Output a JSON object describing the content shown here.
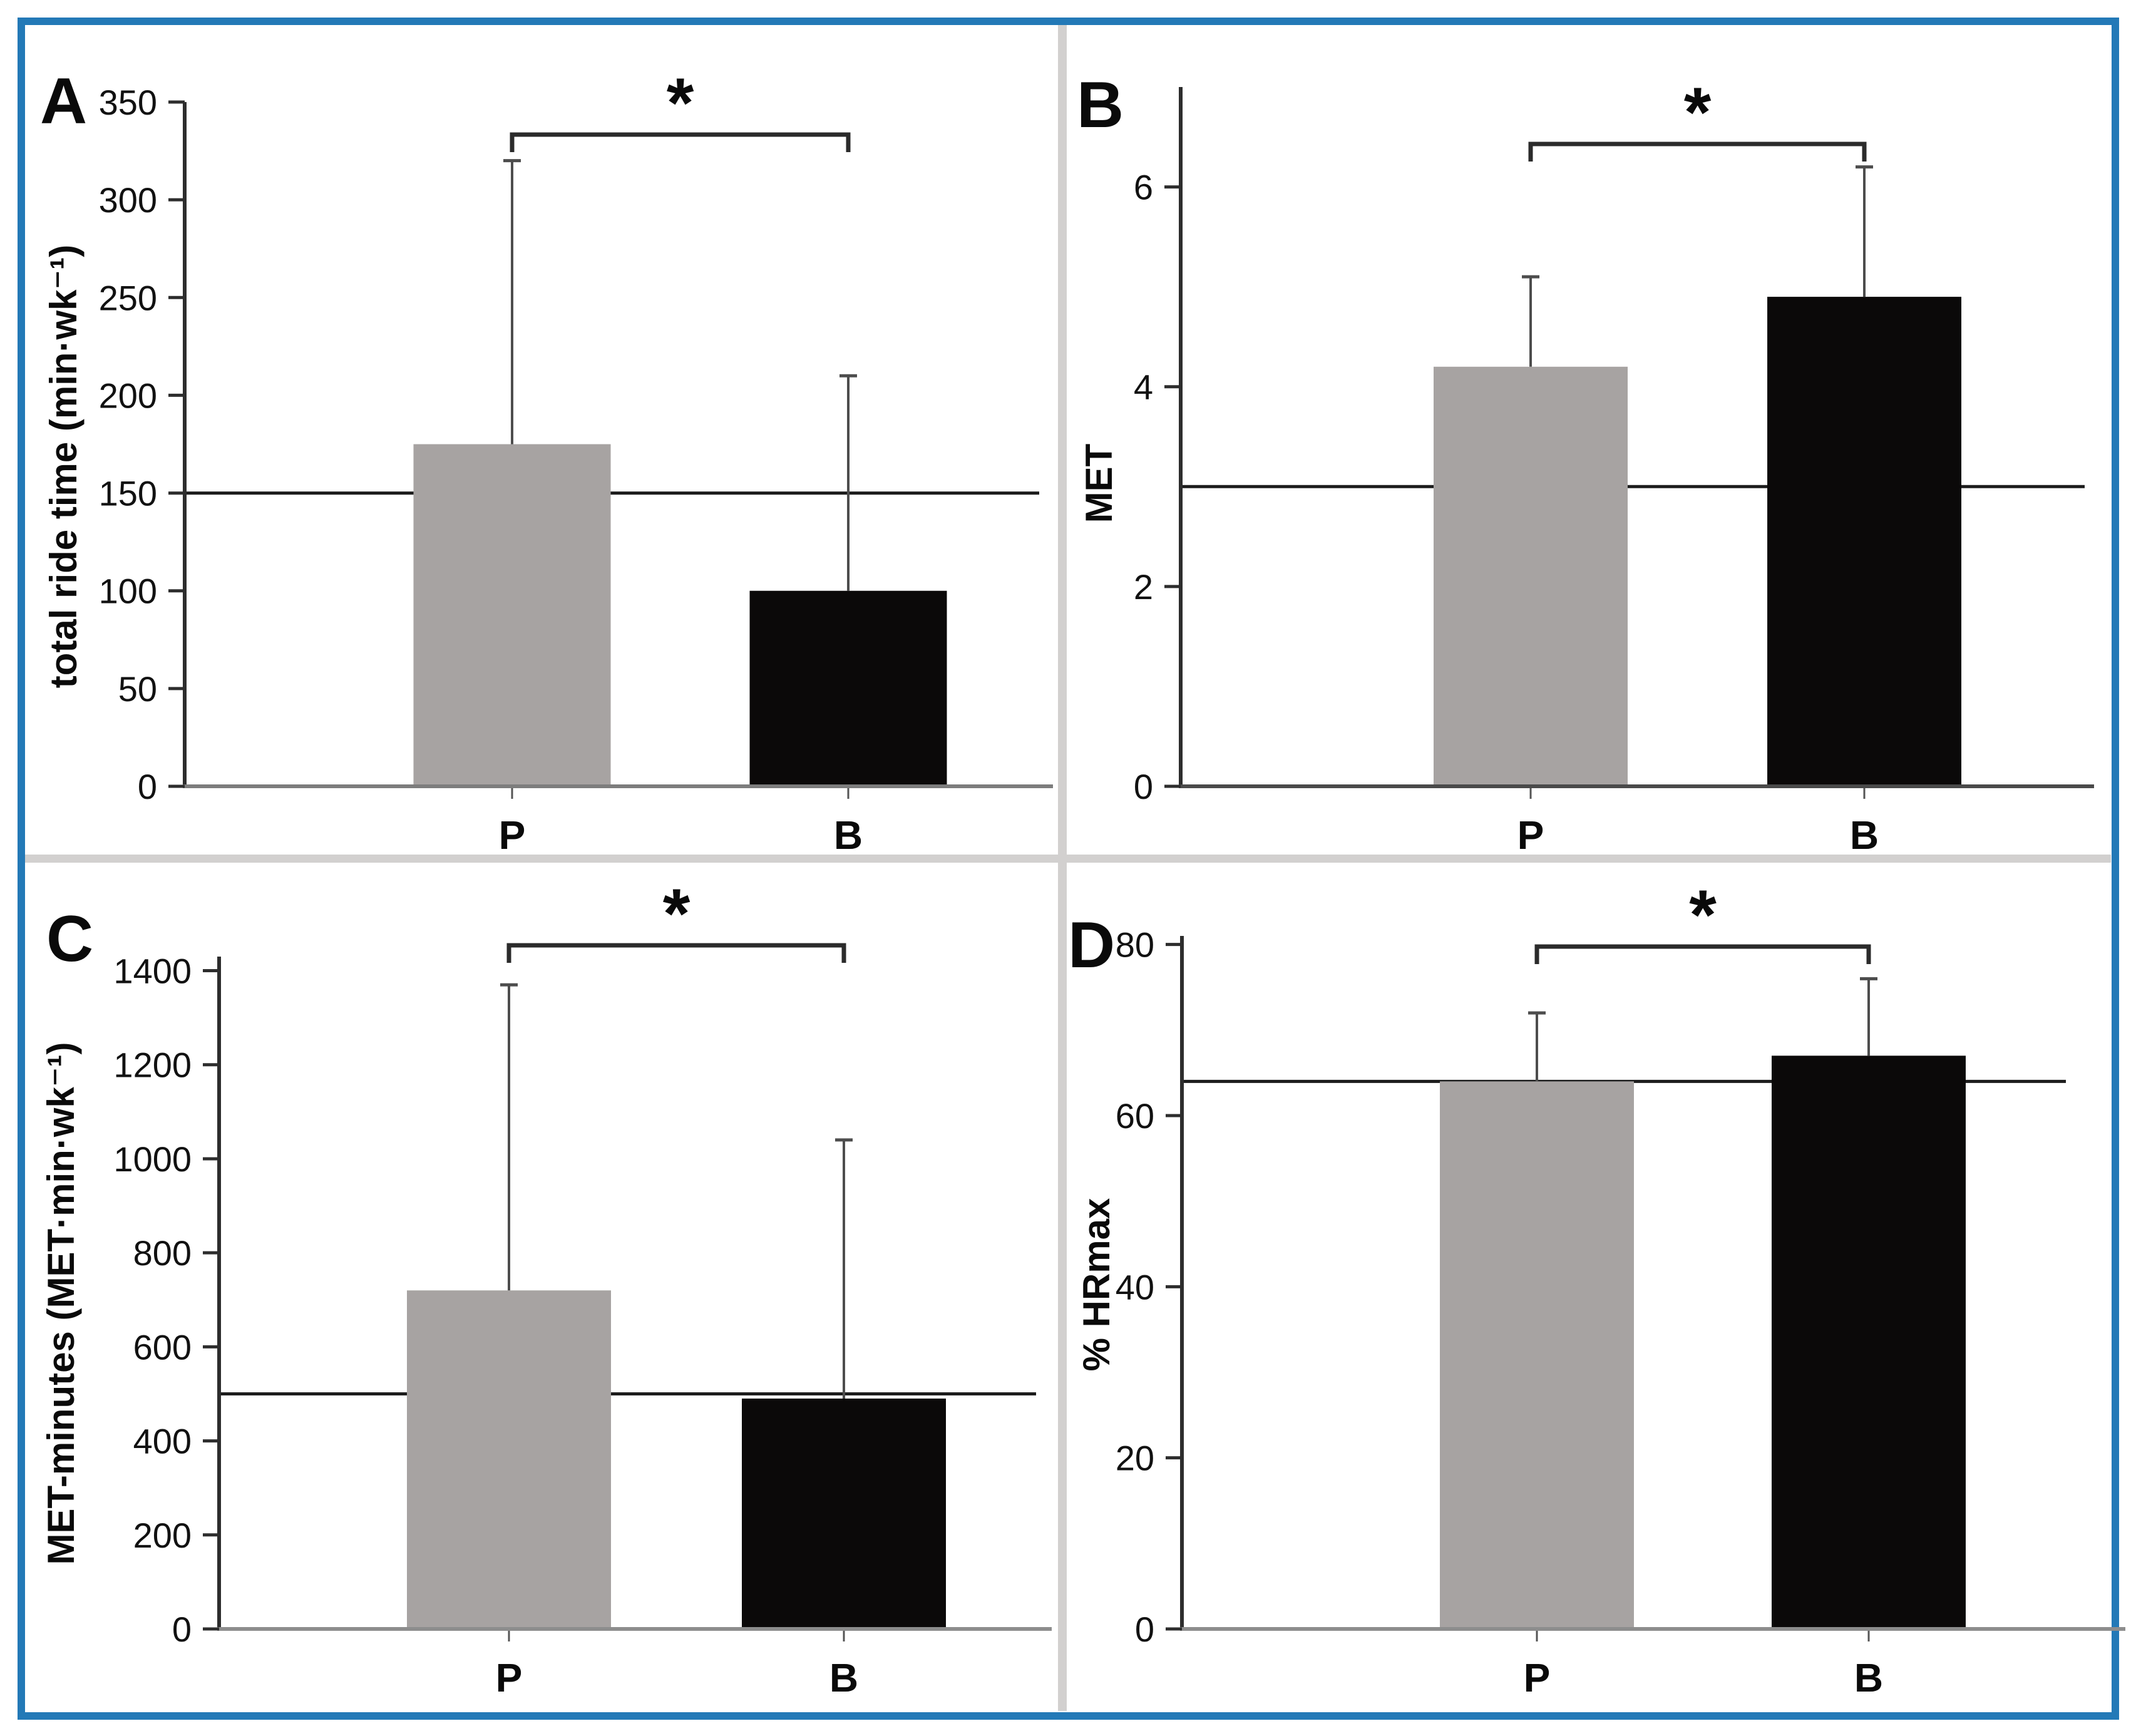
{
  "figure": {
    "border_color": "#2379b7",
    "separator_color": "#d2d0cf",
    "bar_colors": {
      "P": "#a7a3a2",
      "B": "#0b0909"
    },
    "error_bar_color": "#4d4d4d",
    "reference_line_color": "#1c1c1c",
    "axis_color": "#2d2d2d"
  },
  "chart_data": [
    {
      "panel": "A",
      "type": "bar",
      "ylabel": "total ride time (min·wk⁻¹)",
      "categories": [
        "P",
        "B"
      ],
      "values": [
        175,
        100
      ],
      "errors_upper": [
        320,
        210
      ],
      "reference_line": 150,
      "yticks": [
        0,
        50,
        100,
        150,
        200,
        250,
        300,
        350
      ],
      "ylim": [
        0,
        350
      ],
      "significance": "*",
      "legend": "none",
      "grid": "off"
    },
    {
      "panel": "B",
      "type": "bar",
      "ylabel": "MET",
      "categories": [
        "P",
        "B"
      ],
      "values": [
        4.2,
        4.9
      ],
      "errors_upper": [
        5.1,
        6.2
      ],
      "reference_line": 3,
      "yticks": [
        0,
        2,
        4,
        6
      ],
      "ylim": [
        0,
        7
      ],
      "significance": "*",
      "legend": "none",
      "grid": "off"
    },
    {
      "panel": "C",
      "type": "bar",
      "ylabel": "MET-minutes (MET·min·wk⁻¹)",
      "categories": [
        "P",
        "B"
      ],
      "values": [
        720,
        490
      ],
      "errors_upper": [
        1370,
        1040
      ],
      "reference_line": 500,
      "yticks": [
        0,
        200,
        400,
        600,
        800,
        1000,
        1200,
        1400
      ],
      "ylim": [
        0,
        1430
      ],
      "significance": "*",
      "legend": "none",
      "grid": "off"
    },
    {
      "panel": "D",
      "type": "bar",
      "ylabel": "% HRmax",
      "categories": [
        "P",
        "B"
      ],
      "values": [
        64,
        67
      ],
      "errors_upper": [
        72,
        76
      ],
      "reference_line": 64,
      "yticks": [
        0,
        20,
        40,
        60,
        80
      ],
      "ylim": [
        0,
        81
      ],
      "significance": "*",
      "legend": "none",
      "grid": "off"
    }
  ]
}
